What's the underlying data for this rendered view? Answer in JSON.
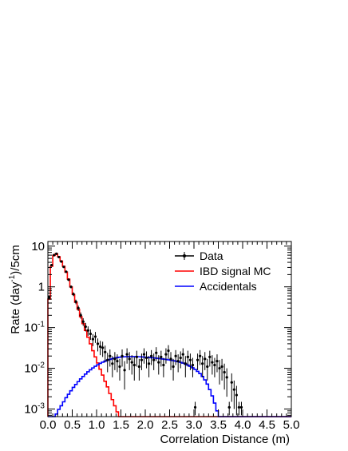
{
  "chart_data": {
    "type": "histogram",
    "title": "",
    "xlabel": "Correlation Distance (m)",
    "ylabel_parts": [
      "Rate (day",
      "-1",
      ")/5cm"
    ],
    "xlim": [
      0,
      5
    ],
    "ylim": [
      0.00065,
      13
    ],
    "log_y": true,
    "x_ticks": [
      0.0,
      0.5,
      1.0,
      1.5,
      2.0,
      2.5,
      3.0,
      3.5,
      4.0,
      4.5,
      5.0
    ],
    "x_tick_labels": [
      "0.0",
      "0.5",
      "1.0",
      "1.5",
      "2.0",
      "2.5",
      "3.0",
      "3.5",
      "4.0",
      "4.5",
      "5.0"
    ],
    "y_ticks": [
      {
        "value": 10,
        "base": "10",
        "exp": ""
      },
      {
        "value": 1,
        "base": "1",
        "exp": ""
      },
      {
        "value": 0.1,
        "base": "10",
        "exp": "-1"
      },
      {
        "value": 0.01,
        "base": "10",
        "exp": "-2"
      },
      {
        "value": 0.001,
        "base": "10",
        "exp": "-3"
      }
    ],
    "bin_width": 0.05,
    "legend": {
      "placement": "top-right",
      "entries": [
        {
          "label": "Data",
          "color": "#000000",
          "style": "marker"
        },
        {
          "label": "IBD signal MC",
          "color": "#ff0000",
          "style": "line"
        },
        {
          "label": "Accidentals",
          "color": "#0000ff",
          "style": "line"
        }
      ]
    },
    "series": [
      {
        "name": "IBD signal MC",
        "color": "#ff0000",
        "x_start": 0.0,
        "values": [
          0.5,
          3.2,
          5.9,
          6.5,
          5.5,
          4.3,
          3.2,
          2.3,
          1.55,
          1.0,
          0.65,
          0.42,
          0.28,
          0.185,
          0.125,
          0.085,
          0.058,
          0.04,
          0.027,
          0.019,
          0.0135,
          0.0095,
          0.0068,
          0.0048,
          0.0035,
          0.0024,
          0.0017,
          0.0012,
          0.00085,
          0.00065,
          0.00065,
          0.00065,
          0.00065,
          0.00065,
          0.00065,
          0.00065,
          0.00065,
          0.00065,
          0.00065,
          0.00065,
          0.00065,
          0.00065,
          0.00065,
          0.00065,
          0.00065,
          0.00065,
          0.00065,
          0.00065,
          0.00065,
          0.00065,
          0.00065,
          0.00065,
          0.00065,
          0.00065,
          0.00065,
          0.00065,
          0.00065,
          0.00065,
          0.00065,
          0.00065,
          0.00065,
          0.00065,
          0.00065,
          0.00065,
          0.00065,
          0.00065,
          0.00065,
          0.00065,
          0.00065,
          0.00065,
          0.00065,
          0.00065,
          0.00065,
          0.00065,
          0.00065,
          0.00065,
          0.00065,
          0.00065,
          0.00065,
          0.00065,
          0.00065,
          0.00065,
          0.00065,
          0.00065,
          0.00065,
          0.00065,
          0.00065,
          0.00065,
          0.00065,
          0.00065,
          0.00065,
          0.00065,
          0.00065,
          0.00065,
          0.00065,
          0.00065,
          0.00065,
          0.00065,
          0.00065,
          0.00065
        ]
      },
      {
        "name": "Accidentals",
        "color": "#0000ff",
        "x_start": 0.0,
        "values": [
          0.00065,
          0.00065,
          0.00065,
          0.00075,
          0.00098,
          0.0012,
          0.0015,
          0.0019,
          0.0023,
          0.0028,
          0.0034,
          0.004,
          0.0047,
          0.0055,
          0.0063,
          0.0072,
          0.0082,
          0.0092,
          0.0102,
          0.0112,
          0.0122,
          0.0132,
          0.0141,
          0.015,
          0.0158,
          0.0165,
          0.0172,
          0.0178,
          0.0183,
          0.0187,
          0.019,
          0.0192,
          0.0193,
          0.0194,
          0.0194,
          0.0194,
          0.0193,
          0.0192,
          0.019,
          0.0188,
          0.0186,
          0.0184,
          0.0182,
          0.018,
          0.0177,
          0.0174,
          0.0171,
          0.0168,
          0.0165,
          0.0162,
          0.0158,
          0.0154,
          0.015,
          0.0145,
          0.014,
          0.0134,
          0.0127,
          0.012,
          0.0112,
          0.0103,
          0.0094,
          0.0084,
          0.0074,
          0.0063,
          0.0052,
          0.0041,
          0.003,
          0.0021,
          0.0014,
          0.0009,
          0.00065,
          0.00065,
          0.00065,
          0.00065,
          0.00065,
          0.00065,
          0.00065,
          0.00065,
          0.00065,
          0.00065,
          0.00065,
          0.00065,
          0.00065,
          0.00065,
          0.00065,
          0.00065,
          0.00065,
          0.00065,
          0.00065,
          0.00065,
          0.00065,
          0.00065,
          0.00065,
          0.00065,
          0.00065,
          0.00065,
          0.00065,
          0.00065,
          0.00065,
          0.00065
        ]
      },
      {
        "name": "Data",
        "color": "#000000",
        "points": [
          {
            "x": 0.025,
            "y": 0.55,
            "err": 0.06
          },
          {
            "x": 0.075,
            "y": 3.4,
            "err": 0.15
          },
          {
            "x": 0.125,
            "y": 6.0,
            "err": 0.2
          },
          {
            "x": 0.175,
            "y": 6.5,
            "err": 0.2
          },
          {
            "x": 0.225,
            "y": 5.4,
            "err": 0.2
          },
          {
            "x": 0.275,
            "y": 4.2,
            "err": 0.17
          },
          {
            "x": 0.325,
            "y": 3.1,
            "err": 0.15
          },
          {
            "x": 0.375,
            "y": 2.35,
            "err": 0.13
          },
          {
            "x": 0.425,
            "y": 1.5,
            "err": 0.1
          },
          {
            "x": 0.475,
            "y": 1.0,
            "err": 0.08
          },
          {
            "x": 0.525,
            "y": 0.66,
            "err": 0.07
          },
          {
            "x": 0.575,
            "y": 0.43,
            "err": 0.055
          },
          {
            "x": 0.625,
            "y": 0.3,
            "err": 0.045
          },
          {
            "x": 0.675,
            "y": 0.2,
            "err": 0.035
          },
          {
            "x": 0.725,
            "y": 0.14,
            "err": 0.03
          },
          {
            "x": 0.775,
            "y": 0.105,
            "err": 0.025
          },
          {
            "x": 0.825,
            "y": 0.085,
            "err": 0.022
          },
          {
            "x": 0.875,
            "y": 0.07,
            "err": 0.02
          },
          {
            "x": 0.925,
            "y": 0.052,
            "err": 0.017
          },
          {
            "x": 0.975,
            "y": 0.06,
            "err": 0.018
          },
          {
            "x": 1.025,
            "y": 0.04,
            "err": 0.014
          },
          {
            "x": 1.075,
            "y": 0.034,
            "err": 0.013
          },
          {
            "x": 1.125,
            "y": 0.032,
            "err": 0.013
          },
          {
            "x": 1.175,
            "y": 0.025,
            "err": 0.011
          },
          {
            "x": 1.225,
            "y": 0.016,
            "err": 0.008
          },
          {
            "x": 1.275,
            "y": 0.02,
            "err": 0.009
          },
          {
            "x": 1.325,
            "y": 0.013,
            "err": 0.007
          },
          {
            "x": 1.375,
            "y": 0.017,
            "err": 0.008
          },
          {
            "x": 1.425,
            "y": 0.015,
            "err": 0.007
          },
          {
            "x": 1.475,
            "y": 0.011,
            "err": 0.006
          },
          {
            "x": 1.525,
            "y": 0.02,
            "err": 0.009
          },
          {
            "x": 1.575,
            "y": 0.009,
            "err": 0.006
          },
          {
            "x": 1.625,
            "y": 0.022,
            "err": 0.009
          },
          {
            "x": 1.675,
            "y": 0.017,
            "err": 0.008
          },
          {
            "x": 1.725,
            "y": 0.014,
            "err": 0.007
          },
          {
            "x": 1.775,
            "y": 0.012,
            "err": 0.007
          },
          {
            "x": 1.825,
            "y": 0.019,
            "err": 0.008
          },
          {
            "x": 1.875,
            "y": 0.011,
            "err": 0.006
          },
          {
            "x": 1.925,
            "y": 0.016,
            "err": 0.007
          },
          {
            "x": 1.975,
            "y": 0.022,
            "err": 0.009
          },
          {
            "x": 2.025,
            "y": 0.018,
            "err": 0.008
          },
          {
            "x": 2.075,
            "y": 0.013,
            "err": 0.007
          },
          {
            "x": 2.125,
            "y": 0.02,
            "err": 0.008
          },
          {
            "x": 2.175,
            "y": 0.016,
            "err": 0.007
          },
          {
            "x": 2.225,
            "y": 0.024,
            "err": 0.009
          },
          {
            "x": 2.275,
            "y": 0.014,
            "err": 0.007
          },
          {
            "x": 2.325,
            "y": 0.019,
            "err": 0.008
          },
          {
            "x": 2.375,
            "y": 0.012,
            "err": 0.006
          },
          {
            "x": 2.425,
            "y": 0.022,
            "err": 0.009
          },
          {
            "x": 2.475,
            "y": 0.027,
            "err": 0.01
          },
          {
            "x": 2.525,
            "y": 0.017,
            "err": 0.008
          },
          {
            "x": 2.575,
            "y": 0.011,
            "err": 0.006
          },
          {
            "x": 2.625,
            "y": 0.02,
            "err": 0.008
          },
          {
            "x": 2.675,
            "y": 0.015,
            "err": 0.007
          },
          {
            "x": 2.725,
            "y": 0.018,
            "err": 0.008
          },
          {
            "x": 2.775,
            "y": 0.022,
            "err": 0.009
          },
          {
            "x": 2.825,
            "y": 0.013,
            "err": 0.007
          },
          {
            "x": 2.875,
            "y": 0.019,
            "err": 0.008
          },
          {
            "x": 2.925,
            "y": 0.016,
            "err": 0.007
          },
          {
            "x": 2.975,
            "y": 0.012,
            "err": 0.006
          },
          {
            "x": 3.025,
            "y": 0.0011,
            "err": 0.0004
          },
          {
            "x": 3.075,
            "y": 0.016,
            "err": 0.007
          },
          {
            "x": 3.125,
            "y": 0.02,
            "err": 0.008
          },
          {
            "x": 3.175,
            "y": 0.013,
            "err": 0.007
          },
          {
            "x": 3.225,
            "y": 0.017,
            "err": 0.008
          },
          {
            "x": 3.275,
            "y": 0.011,
            "err": 0.006
          },
          {
            "x": 3.325,
            "y": 0.019,
            "err": 0.008
          },
          {
            "x": 3.375,
            "y": 0.014,
            "err": 0.007
          },
          {
            "x": 3.425,
            "y": 0.012,
            "err": 0.006
          },
          {
            "x": 3.475,
            "y": 0.015,
            "err": 0.007
          },
          {
            "x": 3.525,
            "y": 0.01,
            "err": 0.006
          },
          {
            "x": 3.575,
            "y": 0.011,
            "err": 0.006
          },
          {
            "x": 3.625,
            "y": 0.008,
            "err": 0.005
          },
          {
            "x": 3.675,
            "y": 0.006,
            "err": 0.004
          },
          {
            "x": 3.725,
            "y": 0.0011,
            "err": 0.0004
          },
          {
            "x": 3.775,
            "y": 0.0045,
            "err": 0.003
          },
          {
            "x": 3.825,
            "y": 0.003,
            "err": 0.002
          },
          {
            "x": 3.875,
            "y": 0.0022,
            "err": 0.0015
          },
          {
            "x": 3.925,
            "y": 0.0011,
            "err": 0.0004
          },
          {
            "x": 3.975,
            "y": 0.0011,
            "err": 0.0004
          }
        ]
      }
    ]
  }
}
